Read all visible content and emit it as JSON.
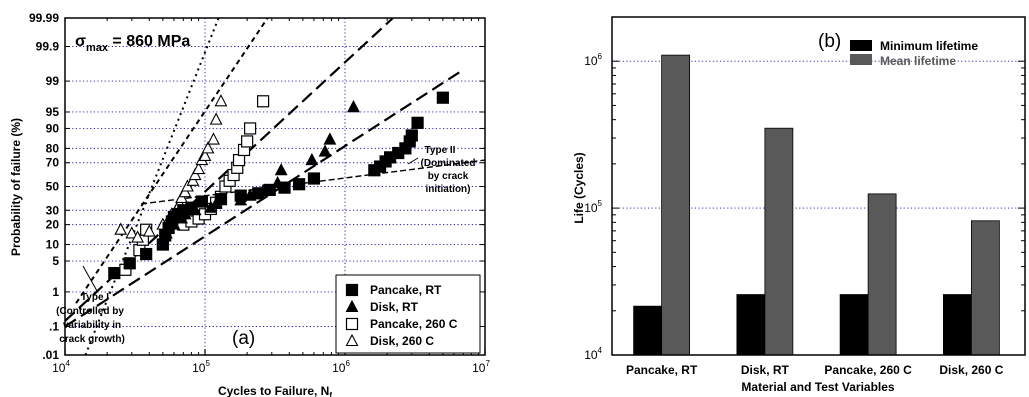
{
  "chart_data": [
    {
      "type": "scatter",
      "panel_label": "(a)",
      "annotation_main": {
        "sigma": "σ",
        "sub": "max",
        "rest": " = 860 MPa"
      },
      "xlabel": {
        "text": "Cycles to Failure,  N",
        "sub": "f"
      },
      "ylabel": "Probability of failure  (%)",
      "x_scale": "log",
      "y_scale": "probability (normal)",
      "xlim": [
        10000,
        10000000
      ],
      "ylim": [
        0.01,
        99.99
      ],
      "x_ticks": [
        {
          "value": 10000,
          "base": "10",
          "exp": "4"
        },
        {
          "value": 100000,
          "base": "10",
          "exp": "5"
        },
        {
          "value": 1000000,
          "base": "10",
          "exp": "6"
        },
        {
          "value": 10000000,
          "base": "10",
          "exp": "7"
        }
      ],
      "y_ticks": [
        {
          "value": 0.01,
          "label": ".01"
        },
        {
          "value": 0.1,
          "label": ".1"
        },
        {
          "value": 1,
          "label": "1"
        },
        {
          "value": 5,
          "label": "5"
        },
        {
          "value": 10,
          "label": "10"
        },
        {
          "value": 20,
          "label": "20"
        },
        {
          "value": 30,
          "label": "30"
        },
        {
          "value": 50,
          "label": "50"
        },
        {
          "value": 70,
          "label": "70"
        },
        {
          "value": 80,
          "label": "80"
        },
        {
          "value": 90,
          "label": "90"
        },
        {
          "value": 95,
          "label": "95"
        },
        {
          "value": 99,
          "label": "99"
        },
        {
          "value": 99.9,
          "label": "99.9"
        },
        {
          "value": 99.99,
          "label": "99.99"
        }
      ],
      "grid": true,
      "legend_position": "bottom-right",
      "series": [
        {
          "name": "Pancake, RT",
          "marker": "square-filled",
          "points": [
            [
              22500,
              2.8
            ],
            [
              29000,
              4.5
            ],
            [
              38000,
              6.8
            ],
            [
              50000,
              10
            ],
            [
              52000,
              14
            ],
            [
              55000,
              18
            ],
            [
              58000,
              22
            ],
            [
              60000,
              25
            ],
            [
              64000,
              27
            ],
            [
              70000,
              30
            ],
            [
              80000,
              32
            ],
            [
              95000,
              37
            ],
            [
              130000,
              39
            ],
            [
              180000,
              42
            ],
            [
              240000,
              44
            ],
            [
              290000,
              47
            ],
            [
              370000,
              49
            ],
            [
              470000,
              52
            ],
            [
              600000,
              57
            ],
            [
              1620000,
              64
            ],
            [
              1780000,
              67
            ],
            [
              1950000,
              71
            ],
            [
              2100000,
              74
            ],
            [
              2400000,
              77
            ],
            [
              2700000,
              80
            ],
            [
              2900000,
              84
            ],
            [
              3000000,
              87
            ],
            [
              3300000,
              92
            ],
            [
              5000000,
              97.5
            ]
          ]
        },
        {
          "name": "Disk, RT",
          "marker": "triangle-filled",
          "points": [
            [
              53000,
              15
            ],
            [
              60000,
              20
            ],
            [
              68000,
              24
            ],
            [
              72000,
              27
            ],
            [
              85000,
              30
            ],
            [
              110000,
              32
            ],
            [
              120000,
              35
            ],
            [
              180000,
              38
            ],
            [
              210000,
              42
            ],
            [
              260000,
              46
            ],
            [
              330000,
              53
            ],
            [
              350000,
              64
            ],
            [
              580000,
              72
            ],
            [
              720000,
              78
            ],
            [
              780000,
              85
            ],
            [
              1150000,
              96
            ]
          ]
        },
        {
          "name": "Pancake, 260 C",
          "marker": "square-open",
          "points": [
            [
              27000,
              3.3
            ],
            [
              34000,
              8
            ],
            [
              36000,
              12
            ],
            [
              38000,
              17
            ],
            [
              70000,
              20
            ],
            [
              80000,
              22
            ],
            [
              90000,
              24
            ],
            [
              100000,
              27
            ],
            [
              110000,
              31
            ],
            [
              120000,
              36
            ],
            [
              130000,
              41
            ],
            [
              140000,
              50
            ],
            [
              150000,
              55
            ],
            [
              160000,
              60
            ],
            [
              170000,
              66
            ],
            [
              175000,
              72
            ],
            [
              190000,
              79
            ],
            [
              200000,
              84
            ],
            [
              210000,
              90
            ],
            [
              260000,
              97
            ]
          ]
        },
        {
          "name": "Disk, 260 C",
          "marker": "triangle-open",
          "points": [
            [
              25000,
              17
            ],
            [
              30000,
              15
            ],
            [
              33000,
              13
            ],
            [
              40000,
              16
            ],
            [
              50000,
              20
            ],
            [
              55000,
              23
            ],
            [
              58000,
              27
            ],
            [
              63000,
              31
            ],
            [
              66000,
              35
            ],
            [
              68000,
              40
            ],
            [
              72000,
              45
            ],
            [
              75000,
              50
            ],
            [
              82000,
              55
            ],
            [
              85000,
              60
            ],
            [
              90000,
              65
            ],
            [
              95000,
              72
            ],
            [
              100000,
              75
            ],
            [
              105000,
              80
            ],
            [
              115000,
              85
            ],
            [
              120000,
              93
            ],
            [
              130000,
              97
            ]
          ]
        }
      ],
      "fit_lines": [
        {
          "style": "dotted",
          "from": [
            14000,
            0.01
          ],
          "to": [
            125000,
            99.99
          ]
        },
        {
          "style": "short-dash",
          "from": [
            12000,
            0.5
          ],
          "to": [
            280000,
            99.99
          ]
        },
        {
          "style": "long-dash",
          "from": [
            10000,
            0.15
          ],
          "to": [
            2200000,
            99.99
          ]
        },
        {
          "style": "long-dash",
          "from": [
            10000,
            0.1
          ],
          "to": [
            7000000,
            99.5
          ]
        },
        {
          "style": "fine-dash",
          "from": [
            35000,
            35
          ],
          "to": [
            10000000,
            72
          ]
        }
      ],
      "annotations": [
        {
          "id": "type2",
          "lines": [
            "Type II",
            "(Dominated",
            "by crack",
            "initiation)"
          ]
        },
        {
          "id": "type1",
          "lines": [
            "Type I",
            "(Controlled by",
            "variability in",
            "crack growth)"
          ]
        }
      ]
    },
    {
      "type": "bar",
      "panel_label": "(b)",
      "categories": [
        "Pancake, RT",
        "Disk, RT",
        "Pancake, 260 C",
        "Disk, 260 C"
      ],
      "series": [
        {
          "name": "Minimum lifetime",
          "color": "#000000",
          "values": [
            21500,
            25800,
            25800,
            25800
          ]
        },
        {
          "name": "Mean lifetime",
          "color": "#595959",
          "values": [
            1100000,
            350000,
            125000,
            82000
          ]
        }
      ],
      "xlabel": "Material and Test Variables",
      "ylabel": "Life  (Cycles)",
      "y_scale": "log",
      "ylim": [
        10000,
        2000000
      ],
      "y_ticks": [
        {
          "value": 10000,
          "base": "10",
          "exp": "4"
        },
        {
          "value": 100000,
          "base": "10",
          "exp": "5"
        },
        {
          "value": 1000000,
          "base": "10",
          "exp": "6"
        }
      ],
      "grid": true,
      "legend_position": "top-right"
    }
  ]
}
